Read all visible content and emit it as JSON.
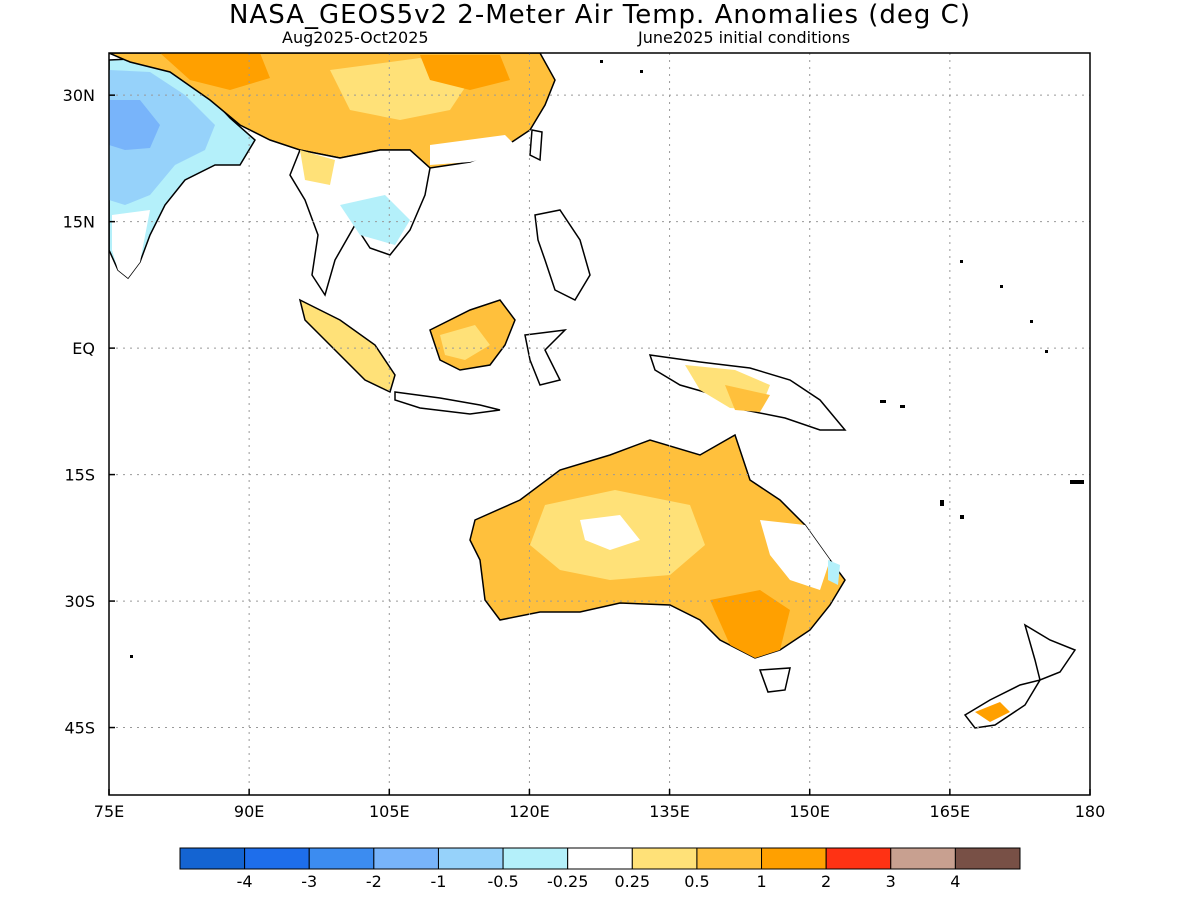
{
  "title": "NASA_GEOS5v2 2-Meter Air Temp. Anomalies (deg C)",
  "subtitle_left": "Aug2025-Oct2025",
  "subtitle_right": "June2025 initial conditions",
  "map": {
    "lon_range": [
      75,
      180
    ],
    "lat_range": [
      -53,
      35
    ],
    "x_ticks": [
      {
        "value": 75,
        "label": "75E"
      },
      {
        "value": 90,
        "label": "90E"
      },
      {
        "value": 105,
        "label": "105E"
      },
      {
        "value": 120,
        "label": "120E"
      },
      {
        "value": 135,
        "label": "135E"
      },
      {
        "value": 150,
        "label": "150E"
      },
      {
        "value": 165,
        "label": "165E"
      },
      {
        "value": 180,
        "label": "180"
      }
    ],
    "y_ticks": [
      {
        "value": 30,
        "label": "30N"
      },
      {
        "value": 15,
        "label": "15N"
      },
      {
        "value": 0,
        "label": "EQ"
      },
      {
        "value": -15,
        "label": "15S"
      },
      {
        "value": -30,
        "label": "30S"
      },
      {
        "value": -45,
        "label": "45S"
      }
    ],
    "grid": true
  },
  "colorbar": {
    "colors": [
      "#1464d2",
      "#1e6eeb",
      "#3c8cf0",
      "#78b4fa",
      "#96d2fa",
      "#b4f0fa",
      "#ffffff",
      "#ffe178",
      "#ffc03c",
      "#ffa000",
      "#ff3214",
      "#c8a090",
      "#785046"
    ],
    "labels": [
      "-4",
      "-3",
      "-2",
      "-1",
      "-0.5",
      "-0.25",
      "0.25",
      "0.5",
      "1",
      "2",
      "3",
      "4"
    ]
  }
}
